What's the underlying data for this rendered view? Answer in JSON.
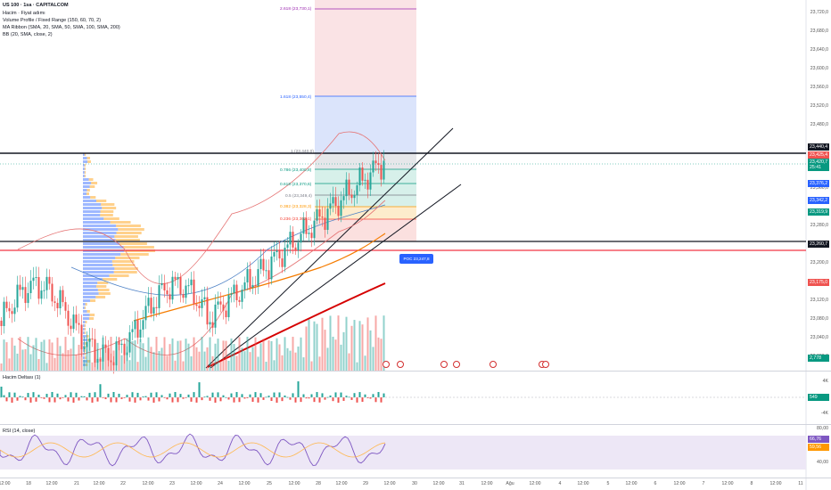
{
  "symbol_title": "US 100 · 1sa · CAPITALCOM",
  "indicators": {
    "volume": "Hacim · Fiyat adımı",
    "volume_profile": "Volume Profile / Fixed Range (150, 60, 70, 2)",
    "ma_ribbon": "MA Ribbon (SMA, 20, SMA, 50, SMA, 100, SMA, 200)",
    "bb": "BB (20, SMA, close, 2)"
  },
  "fib_labels": {
    "f2618": "2.618 (23,730,1)",
    "f1618": "1.618 (23,550,4)",
    "f1": "1 (23,440,0)",
    "f786": "0.786 (23,400,8)",
    "f618": "0.618 (23,370,6)",
    "f5": "0.5 (23,349,4)",
    "f382": "0.382 (23,328,3)",
    "f236": "0.236 (23,302,1)"
  },
  "price_axis": [
    "23,720,0",
    "23,680,0",
    "23,640,0",
    "23,600,0",
    "23,560,0",
    "23,520,0",
    "23,480,0",
    "23,360,0",
    "23,280,0",
    "23,240,0",
    "23,200,0",
    "23,160,0",
    "23,120,0",
    "23,080,0",
    "23,040,0",
    "23,000,0"
  ],
  "price_badges": {
    "b1": "23,440,4",
    "b2": "23,425,4",
    "b3": "23,420,7",
    "b3_time": "25:41",
    "b4": "23,376,2",
    "b5": "23,342,2",
    "b6": "23,319,9",
    "b7": "23,260,7",
    "b8": "23,175,0",
    "b9": "2,778"
  },
  "poc_label": "POC 23,247,8",
  "delta_panel": {
    "label": "Hacim Deltası (1)",
    "axis": [
      "4K",
      "-4K"
    ],
    "value": "549"
  },
  "rsi_panel": {
    "label": "RSI (14, close)",
    "axis": [
      "80,00",
      "40,00"
    ],
    "value1": "66,76",
    "value2": "59,56"
  },
  "time_axis": [
    "12:00",
    "18",
    "12:00",
    "21",
    "12:00",
    "22",
    "12:00",
    "23",
    "12:00",
    "24",
    "12:00",
    "25",
    "12:00",
    "28",
    "12:00",
    "29",
    "12:00",
    "30",
    "12:00",
    "31",
    "12:00",
    "Ağu",
    "12:00",
    "4",
    "12:00",
    "5",
    "12:00",
    "6",
    "12:00",
    "7",
    "12:00",
    "8",
    "12:00",
    "11"
  ],
  "colors": {
    "up": "#26a69a",
    "down": "#ef5350",
    "vp_blue": "#2962ff",
    "vp_orange": "#ff9800",
    "ma200": "#d50000",
    "ma100": "#f57c00",
    "bb": "#e57373",
    "rsi": "#7e57c2"
  }
}
